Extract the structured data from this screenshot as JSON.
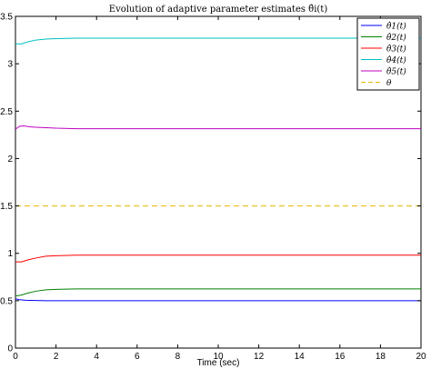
{
  "chart_data": {
    "type": "line",
    "title": "Evolution of adaptive parameter estimates θ̂i(t)",
    "xlabel": "Time (sec)",
    "ylabel": "",
    "xlim": [
      0,
      20
    ],
    "ylim": [
      0,
      3.5
    ],
    "xticks": [
      0,
      2,
      4,
      6,
      8,
      10,
      12,
      14,
      16,
      18,
      20
    ],
    "yticks": [
      0,
      0.5,
      1,
      1.5,
      2,
      2.5,
      3,
      3.5
    ],
    "xtick_labels": [
      "0",
      "2",
      "4",
      "6",
      "8",
      "10",
      "12",
      "14",
      "16",
      "18",
      "20"
    ],
    "ytick_labels": [
      "0",
      "0.5",
      "1",
      "1.5",
      "2",
      "2.5",
      "3",
      "3.5"
    ],
    "grid": false,
    "legend_position": "top-right",
    "series": [
      {
        "name": "θ̂1(t)",
        "color": "#0000ff",
        "dash": "solid",
        "x": [
          0,
          0.2,
          0.5,
          1,
          1.5,
          2,
          3,
          4,
          6,
          8,
          10,
          12,
          14,
          16,
          18,
          20
        ],
        "y": [
          0.52,
          0.51,
          0.505,
          0.502,
          0.5,
          0.5,
          0.5,
          0.5,
          0.5,
          0.5,
          0.5,
          0.5,
          0.5,
          0.5,
          0.5,
          0.5
        ]
      },
      {
        "name": "θ̂2(t)",
        "color": "#008000",
        "dash": "solid",
        "x": [
          0,
          0.3,
          0.6,
          1,
          1.5,
          2,
          3,
          4,
          6,
          8,
          10,
          12,
          14,
          16,
          18,
          20
        ],
        "y": [
          0.55,
          0.56,
          0.58,
          0.6,
          0.615,
          0.62,
          0.625,
          0.625,
          0.625,
          0.625,
          0.625,
          0.625,
          0.625,
          0.625,
          0.625,
          0.625
        ]
      },
      {
        "name": "θ̂3(t)",
        "color": "#ff0000",
        "dash": "solid",
        "x": [
          0,
          0.3,
          0.6,
          1,
          1.5,
          2,
          3,
          4,
          6,
          8,
          10,
          12,
          14,
          16,
          18,
          20
        ],
        "y": [
          0.91,
          0.91,
          0.93,
          0.95,
          0.97,
          0.975,
          0.98,
          0.98,
          0.98,
          0.98,
          0.98,
          0.98,
          0.98,
          0.98,
          0.98,
          0.98
        ]
      },
      {
        "name": "θ̂4(t)",
        "color": "#00bfbf",
        "dash": "solid",
        "x": [
          0,
          0.3,
          0.6,
          1,
          1.5,
          2,
          3,
          4,
          6,
          8,
          10,
          12,
          14,
          16,
          18,
          20
        ],
        "y": [
          3.21,
          3.21,
          3.23,
          3.25,
          3.26,
          3.265,
          3.27,
          3.27,
          3.27,
          3.27,
          3.27,
          3.27,
          3.27,
          3.27,
          3.27,
          3.27
        ]
      },
      {
        "name": "θ̂5(t)",
        "color": "#bf00bf",
        "dash": "solid",
        "x": [
          0,
          0.2,
          0.4,
          0.7,
          1,
          1.5,
          2,
          3,
          4,
          6,
          8,
          10,
          12,
          14,
          16,
          18,
          20
        ],
        "y": [
          2.31,
          2.34,
          2.345,
          2.335,
          2.33,
          2.325,
          2.32,
          2.315,
          2.315,
          2.315,
          2.315,
          2.315,
          2.315,
          2.315,
          2.315,
          2.315,
          2.315
        ]
      },
      {
        "name": "θ",
        "color": "#e6b800",
        "dash": "dashed",
        "x": [
          0,
          20
        ],
        "y": [
          1.5,
          1.5
        ]
      }
    ]
  }
}
